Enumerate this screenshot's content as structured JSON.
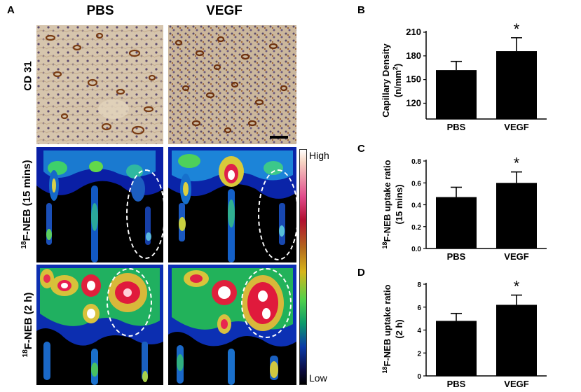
{
  "panels": {
    "A": "A",
    "B": "B",
    "C": "C",
    "D": "D"
  },
  "columns": [
    "PBS",
    "VEGF"
  ],
  "rows": {
    "cd31": "CD 31",
    "neb15_sup": "18",
    "neb15_text": "F-NEB (15 mins)",
    "neb2_sup": "18",
    "neb2_text": "F-NEB (2 h)"
  },
  "colorbar": {
    "high": "High",
    "low": "Low"
  },
  "chart_data": [
    {
      "type": "bar",
      "panel": "B",
      "categories": [
        "PBS",
        "VEGF"
      ],
      "values": [
        162,
        186
      ],
      "errors": [
        11,
        17
      ],
      "ylabel_line1": "Capillary Density",
      "ylabel_line2_pre": "(n/mm",
      "ylabel_line2_sup": "2",
      "ylabel_line2_post": ")",
      "ylim": [
        100,
        210
      ],
      "yticks": [
        120,
        150,
        180,
        210
      ],
      "significance": [
        "",
        "*"
      ]
    },
    {
      "type": "bar",
      "panel": "C",
      "categories": [
        "PBS",
        "VEGF"
      ],
      "values": [
        0.47,
        0.6
      ],
      "errors": [
        0.09,
        0.1
      ],
      "ylabel_sup": "18",
      "ylabel_line1": "F-NEB uptake ratio",
      "ylabel_line2": "(15 mins)",
      "ylim": [
        0,
        0.8
      ],
      "yticks": [
        0.0,
        0.2,
        0.4,
        0.6,
        0.8
      ],
      "yticklabels": [
        "0.0",
        "0.2",
        "0.4",
        "0.6",
        "0.8"
      ],
      "significance": [
        "",
        "*"
      ]
    },
    {
      "type": "bar",
      "panel": "D",
      "categories": [
        "PBS",
        "VEGF"
      ],
      "values": [
        4.8,
        6.2
      ],
      "errors": [
        0.65,
        0.85
      ],
      "ylabel_sup": "18",
      "ylabel_line1": "F-NEB uptake ratio",
      "ylabel_line2": "(2 h)",
      "ylim": [
        0,
        8
      ],
      "yticks": [
        0,
        2,
        4,
        6,
        8
      ],
      "yticklabels": [
        "0",
        "2",
        "4",
        "6",
        "8"
      ],
      "significance": [
        "",
        "*"
      ]
    }
  ]
}
